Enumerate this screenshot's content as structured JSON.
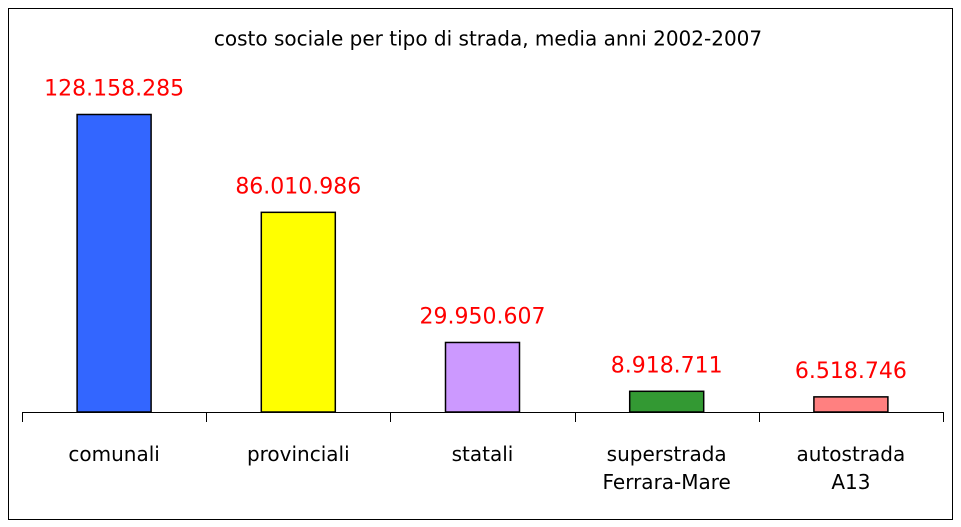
{
  "chart_data": {
    "type": "bar",
    "title": "costo sociale per tipo di strada, media anni 2002-2007",
    "categories": [
      "comunali",
      "provinciali",
      "statali",
      "superstrada Ferrara-Mare",
      "autostrada A13"
    ],
    "values": [
      128158285,
      86010986,
      29950607,
      8918711,
      6518746
    ],
    "value_labels": [
      "128.158.285",
      "86.010.986",
      "29.950.607",
      "8.918.711",
      "6.518.746"
    ],
    "colors": [
      "#3366ff",
      "#ffff00",
      "#cc99ff",
      "#339933",
      "#ff8080"
    ],
    "value_label_color": "#ff0000",
    "ylim": [
      0,
      140000000
    ]
  }
}
